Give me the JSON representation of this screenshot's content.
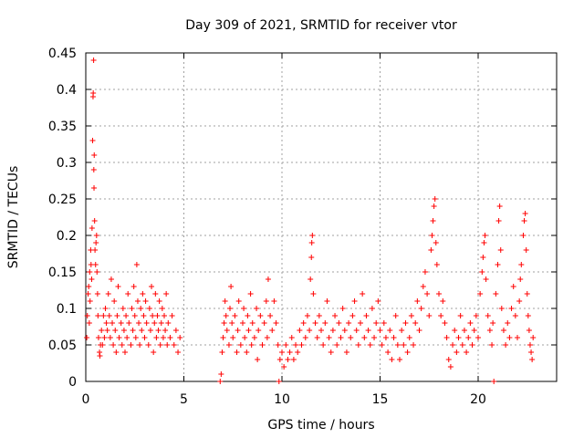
{
  "chart_data": {
    "type": "scatter",
    "title": "Day 309 of 2021, SRMTID for receiver vtor",
    "xlabel": "GPS time / hours",
    "ylabel": "SRMTID / TECUs",
    "xlim": [
      0,
      24
    ],
    "ylim": [
      0,
      0.45
    ],
    "xticks": [
      0,
      5,
      10,
      15,
      20
    ],
    "xtick_labels": [
      "0",
      "5",
      "10",
      "15",
      "20"
    ],
    "yticks": [
      0,
      0.05,
      0.1,
      0.15,
      0.2,
      0.25,
      0.3,
      0.35,
      0.4,
      0.45
    ],
    "ytick_labels": [
      "0",
      "0.05",
      "0.1",
      "0.15",
      "0.2",
      "0.25",
      "0.3",
      "0.35",
      "0.4",
      "0.45"
    ],
    "grid": true,
    "marker": "+",
    "series": [
      {
        "name": "SRMTID",
        "color": "#ff0000",
        "points": [
          [
            0.05,
            0.06
          ],
          [
            0.08,
            0.09
          ],
          [
            0.12,
            0.12
          ],
          [
            0.15,
            0.13
          ],
          [
            0.18,
            0.08
          ],
          [
            0.2,
            0.15
          ],
          [
            0.22,
            0.11
          ],
          [
            0.25,
            0.18
          ],
          [
            0.27,
            0.16
          ],
          [
            0.3,
            0.14
          ],
          [
            0.32,
            0.21
          ],
          [
            0.35,
            0.33
          ],
          [
            0.37,
            0.39
          ],
          [
            0.38,
            0.395
          ],
          [
            0.4,
            0.44
          ],
          [
            0.41,
            0.29
          ],
          [
            0.42,
            0.265
          ],
          [
            0.43,
            0.31
          ],
          [
            0.45,
            0.22
          ],
          [
            0.47,
            0.18
          ],
          [
            0.5,
            0.16
          ],
          [
            0.52,
            0.19
          ],
          [
            0.55,
            0.2
          ],
          [
            0.57,
            0.15
          ],
          [
            0.6,
            0.12
          ],
          [
            0.62,
            0.09
          ],
          [
            0.65,
            0.06
          ],
          [
            0.7,
            0.04
          ],
          [
            0.72,
            0.035
          ],
          [
            0.75,
            0.05
          ],
          [
            0.8,
            0.07
          ],
          [
            0.85,
            0.05
          ],
          [
            0.9,
            0.09
          ],
          [
            0.95,
            0.06
          ],
          [
            1.0,
            0.1
          ],
          [
            1.05,
            0.08
          ],
          [
            1.1,
            0.07
          ],
          [
            1.15,
            0.12
          ],
          [
            1.2,
            0.09
          ],
          [
            1.25,
            0.06
          ],
          [
            1.3,
            0.14
          ],
          [
            1.35,
            0.08
          ],
          [
            1.4,
            0.05
          ],
          [
            1.45,
            0.11
          ],
          [
            1.5,
            0.07
          ],
          [
            1.55,
            0.04
          ],
          [
            1.6,
            0.09
          ],
          [
            1.65,
            0.13
          ],
          [
            1.7,
            0.06
          ],
          [
            1.8,
            0.08
          ],
          [
            1.85,
            0.05
          ],
          [
            1.9,
            0.1
          ],
          [
            1.95,
            0.07
          ],
          [
            2.0,
            0.04
          ],
          [
            2.05,
            0.09
          ],
          [
            2.1,
            0.06
          ],
          [
            2.15,
            0.12
          ],
          [
            2.2,
            0.08
          ],
          [
            2.3,
            0.05
          ],
          [
            2.35,
            0.1
          ],
          [
            2.4,
            0.07
          ],
          [
            2.45,
            0.13
          ],
          [
            2.5,
            0.09
          ],
          [
            2.55,
            0.06
          ],
          [
            2.6,
            0.16
          ],
          [
            2.65,
            0.11
          ],
          [
            2.7,
            0.08
          ],
          [
            2.75,
            0.05
          ],
          [
            2.8,
            0.1
          ],
          [
            2.85,
            0.07
          ],
          [
            2.9,
            0.12
          ],
          [
            2.95,
            0.09
          ],
          [
            3.0,
            0.06
          ],
          [
            3.05,
            0.11
          ],
          [
            3.1,
            0.08
          ],
          [
            3.2,
            0.05
          ],
          [
            3.25,
            0.1
          ],
          [
            3.3,
            0.07
          ],
          [
            3.35,
            0.13
          ],
          [
            3.4,
            0.09
          ],
          [
            3.45,
            0.04
          ],
          [
            3.5,
            0.08
          ],
          [
            3.55,
            0.12
          ],
          [
            3.6,
            0.06
          ],
          [
            3.65,
            0.09
          ],
          [
            3.7,
            0.07
          ],
          [
            3.75,
            0.11
          ],
          [
            3.8,
            0.05
          ],
          [
            3.85,
            0.08
          ],
          [
            3.9,
            0.1
          ],
          [
            3.95,
            0.06
          ],
          [
            4.0,
            0.09
          ],
          [
            4.05,
            0.07
          ],
          [
            4.1,
            0.12
          ],
          [
            4.15,
            0.05
          ],
          [
            4.2,
            0.08
          ],
          [
            4.3,
            0.06
          ],
          [
            4.4,
            0.09
          ],
          [
            4.5,
            0.05
          ],
          [
            4.6,
            0.07
          ],
          [
            4.7,
            0.04
          ],
          [
            4.8,
            0.06
          ],
          [
            6.85,
            0.0
          ],
          [
            6.9,
            0.01
          ],
          [
            6.95,
            0.04
          ],
          [
            7.0,
            0.06
          ],
          [
            7.05,
            0.08
          ],
          [
            7.1,
            0.11
          ],
          [
            7.15,
            0.09
          ],
          [
            7.2,
            0.07
          ],
          [
            7.3,
            0.05
          ],
          [
            7.35,
            0.1
          ],
          [
            7.4,
            0.13
          ],
          [
            7.45,
            0.08
          ],
          [
            7.5,
            0.06
          ],
          [
            7.6,
            0.09
          ],
          [
            7.7,
            0.04
          ],
          [
            7.75,
            0.07
          ],
          [
            7.8,
            0.11
          ],
          [
            7.9,
            0.05
          ],
          [
            8.0,
            0.08
          ],
          [
            8.05,
            0.1
          ],
          [
            8.1,
            0.06
          ],
          [
            8.2,
            0.04
          ],
          [
            8.25,
            0.09
          ],
          [
            8.3,
            0.07
          ],
          [
            8.4,
            0.12
          ],
          [
            8.45,
            0.05
          ],
          [
            8.5,
            0.08
          ],
          [
            8.6,
            0.06
          ],
          [
            8.7,
            0.1
          ],
          [
            8.75,
            0.03
          ],
          [
            8.8,
            0.07
          ],
          [
            8.9,
            0.09
          ],
          [
            9.0,
            0.05
          ],
          [
            9.1,
            0.08
          ],
          [
            9.2,
            0.11
          ],
          [
            9.25,
            0.06
          ],
          [
            9.3,
            0.14
          ],
          [
            9.4,
            0.09
          ],
          [
            9.5,
            0.07
          ],
          [
            9.6,
            0.11
          ],
          [
            9.7,
            0.08
          ],
          [
            9.8,
            0.05
          ],
          [
            9.85,
            0.0
          ],
          [
            9.9,
            0.03
          ],
          [
            10.0,
            0.04
          ],
          [
            10.1,
            0.02
          ],
          [
            10.2,
            0.05
          ],
          [
            10.3,
            0.03
          ],
          [
            10.4,
            0.04
          ],
          [
            10.5,
            0.06
          ],
          [
            10.6,
            0.03
          ],
          [
            10.7,
            0.05
          ],
          [
            10.8,
            0.04
          ],
          [
            10.9,
            0.07
          ],
          [
            11.0,
            0.05
          ],
          [
            11.1,
            0.08
          ],
          [
            11.2,
            0.06
          ],
          [
            11.3,
            0.09
          ],
          [
            11.4,
            0.07
          ],
          [
            11.45,
            0.14
          ],
          [
            11.5,
            0.17
          ],
          [
            11.52,
            0.19
          ],
          [
            11.55,
            0.2
          ],
          [
            11.6,
            0.12
          ],
          [
            11.7,
            0.08
          ],
          [
            11.8,
            0.06
          ],
          [
            11.9,
            0.09
          ],
          [
            12.0,
            0.07
          ],
          [
            12.1,
            0.05
          ],
          [
            12.2,
            0.08
          ],
          [
            12.3,
            0.11
          ],
          [
            12.4,
            0.06
          ],
          [
            12.5,
            0.04
          ],
          [
            12.6,
            0.07
          ],
          [
            12.7,
            0.09
          ],
          [
            12.8,
            0.05
          ],
          [
            12.9,
            0.08
          ],
          [
            13.0,
            0.06
          ],
          [
            13.1,
            0.1
          ],
          [
            13.2,
            0.07
          ],
          [
            13.3,
            0.04
          ],
          [
            13.4,
            0.08
          ],
          [
            13.5,
            0.06
          ],
          [
            13.6,
            0.09
          ],
          [
            13.7,
            0.11
          ],
          [
            13.8,
            0.07
          ],
          [
            13.9,
            0.05
          ],
          [
            14.0,
            0.08
          ],
          [
            14.1,
            0.12
          ],
          [
            14.2,
            0.06
          ],
          [
            14.3,
            0.09
          ],
          [
            14.4,
            0.07
          ],
          [
            14.5,
            0.05
          ],
          [
            14.6,
            0.1
          ],
          [
            14.7,
            0.06
          ],
          [
            14.8,
            0.08
          ],
          [
            14.9,
            0.11
          ],
          [
            15.0,
            0.07
          ],
          [
            15.1,
            0.05
          ],
          [
            15.2,
            0.08
          ],
          [
            15.3,
            0.06
          ],
          [
            15.4,
            0.04
          ],
          [
            15.5,
            0.07
          ],
          [
            15.6,
            0.03
          ],
          [
            15.7,
            0.06
          ],
          [
            15.8,
            0.09
          ],
          [
            15.9,
            0.05
          ],
          [
            16.0,
            0.03
          ],
          [
            16.1,
            0.07
          ],
          [
            16.2,
            0.05
          ],
          [
            16.3,
            0.08
          ],
          [
            16.4,
            0.04
          ],
          [
            16.5,
            0.06
          ],
          [
            16.6,
            0.09
          ],
          [
            16.7,
            0.05
          ],
          [
            16.8,
            0.08
          ],
          [
            16.9,
            0.11
          ],
          [
            17.0,
            0.07
          ],
          [
            17.1,
            0.1
          ],
          [
            17.2,
            0.13
          ],
          [
            17.3,
            0.15
          ],
          [
            17.4,
            0.12
          ],
          [
            17.5,
            0.09
          ],
          [
            17.6,
            0.18
          ],
          [
            17.65,
            0.2
          ],
          [
            17.7,
            0.22
          ],
          [
            17.75,
            0.24
          ],
          [
            17.8,
            0.25
          ],
          [
            17.85,
            0.19
          ],
          [
            17.9,
            0.16
          ],
          [
            18.0,
            0.12
          ],
          [
            18.1,
            0.09
          ],
          [
            18.2,
            0.11
          ],
          [
            18.3,
            0.08
          ],
          [
            18.4,
            0.06
          ],
          [
            18.5,
            0.03
          ],
          [
            18.6,
            0.02
          ],
          [
            18.7,
            0.05
          ],
          [
            18.8,
            0.07
          ],
          [
            18.9,
            0.04
          ],
          [
            19.0,
            0.06
          ],
          [
            19.1,
            0.09
          ],
          [
            19.2,
            0.05
          ],
          [
            19.3,
            0.07
          ],
          [
            19.4,
            0.04
          ],
          [
            19.5,
            0.06
          ],
          [
            19.6,
            0.08
          ],
          [
            19.7,
            0.05
          ],
          [
            19.8,
            0.07
          ],
          [
            19.9,
            0.09
          ],
          [
            20.0,
            0.06
          ],
          [
            20.1,
            0.12
          ],
          [
            20.2,
            0.15
          ],
          [
            20.25,
            0.17
          ],
          [
            20.3,
            0.19
          ],
          [
            20.35,
            0.2
          ],
          [
            20.4,
            0.14
          ],
          [
            20.5,
            0.09
          ],
          [
            20.6,
            0.07
          ],
          [
            20.7,
            0.05
          ],
          [
            20.75,
            0.08
          ],
          [
            20.8,
            0.0
          ],
          [
            20.9,
            0.12
          ],
          [
            21.0,
            0.16
          ],
          [
            21.05,
            0.22
          ],
          [
            21.1,
            0.24
          ],
          [
            21.15,
            0.18
          ],
          [
            21.2,
            0.1
          ],
          [
            21.3,
            0.07
          ],
          [
            21.4,
            0.05
          ],
          [
            21.5,
            0.08
          ],
          [
            21.6,
            0.06
          ],
          [
            21.7,
            0.1
          ],
          [
            21.8,
            0.13
          ],
          [
            21.9,
            0.09
          ],
          [
            22.0,
            0.06
          ],
          [
            22.1,
            0.11
          ],
          [
            22.15,
            0.14
          ],
          [
            22.2,
            0.16
          ],
          [
            22.3,
            0.2
          ],
          [
            22.35,
            0.22
          ],
          [
            22.4,
            0.23
          ],
          [
            22.45,
            0.18
          ],
          [
            22.5,
            0.12
          ],
          [
            22.55,
            0.09
          ],
          [
            22.6,
            0.07
          ],
          [
            22.65,
            0.05
          ],
          [
            22.7,
            0.04
          ],
          [
            22.75,
            0.03
          ],
          [
            22.8,
            0.06
          ]
        ]
      }
    ]
  }
}
